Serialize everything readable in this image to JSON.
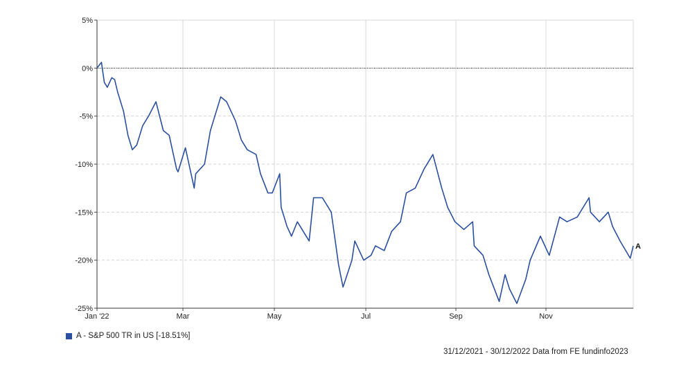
{
  "chart_data": {
    "type": "line",
    "x_ticks": [
      "Jan '22",
      "Mar",
      "May",
      "Jul",
      "Sep",
      "Nov"
    ],
    "y_ticks": [
      "5%",
      "0%",
      "-5%",
      "-10%",
      "-15%",
      "-20%",
      "-25%"
    ],
    "ylim": [
      -25,
      5
    ],
    "grid": true,
    "reference_line": 0,
    "series": [
      {
        "name": "A - S&P 500 TR in US [-18.51%]",
        "end_label": "A",
        "color": "#2a4fa0",
        "x": [
          "2021-12-31",
          "2022-01-03",
          "2022-01-05",
          "2022-01-07",
          "2022-01-10",
          "2022-01-12",
          "2022-01-14",
          "2022-01-18",
          "2022-01-21",
          "2022-01-24",
          "2022-01-27",
          "2022-01-31",
          "2022-02-04",
          "2022-02-09",
          "2022-02-14",
          "2022-02-18",
          "2022-02-23",
          "2022-02-24",
          "2022-03-01",
          "2022-03-07",
          "2022-03-08",
          "2022-03-14",
          "2022-03-18",
          "2022-03-22",
          "2022-03-25",
          "2022-03-29",
          "2022-04-04",
          "2022-04-08",
          "2022-04-12",
          "2022-04-18",
          "2022-04-21",
          "2022-04-26",
          "2022-04-29",
          "2022-05-04",
          "2022-05-05",
          "2022-05-09",
          "2022-05-12",
          "2022-05-16",
          "2022-05-20",
          "2022-05-24",
          "2022-05-27",
          "2022-06-02",
          "2022-06-08",
          "2022-06-13",
          "2022-06-16",
          "2022-06-22",
          "2022-06-24",
          "2022-06-30",
          "2022-07-05",
          "2022-07-08",
          "2022-07-14",
          "2022-07-19",
          "2022-07-25",
          "2022-07-29",
          "2022-08-04",
          "2022-08-10",
          "2022-08-16",
          "2022-08-22",
          "2022-08-26",
          "2022-08-31",
          "2022-09-06",
          "2022-09-12",
          "2022-09-13",
          "2022-09-19",
          "2022-09-23",
          "2022-09-30",
          "2022-10-04",
          "2022-10-07",
          "2022-10-12",
          "2022-10-18",
          "2022-10-21",
          "2022-10-28",
          "2022-11-03",
          "2022-11-10",
          "2022-11-15",
          "2022-11-22",
          "2022-11-30",
          "2022-12-01",
          "2022-12-07",
          "2022-12-13",
          "2022-12-16",
          "2022-12-21",
          "2022-12-28",
          "2022-12-30"
        ],
        "y": [
          0.0,
          0.6,
          -1.5,
          -2.0,
          -1.0,
          -1.2,
          -2.5,
          -4.5,
          -7.0,
          -8.5,
          -8.0,
          -6.0,
          -5.0,
          -3.5,
          -6.5,
          -7.0,
          -10.5,
          -10.8,
          -8.3,
          -12.5,
          -11.0,
          -10.0,
          -6.5,
          -4.5,
          -3.0,
          -3.5,
          -5.5,
          -7.5,
          -8.5,
          -9.0,
          -11.0,
          -13.0,
          -13.0,
          -11.0,
          -14.5,
          -16.5,
          -17.5,
          -16.0,
          -17.0,
          -18.0,
          -13.5,
          -13.5,
          -15.0,
          -20.5,
          -22.8,
          -20.0,
          -18.0,
          -20.0,
          -19.5,
          -18.5,
          -19.0,
          -17.0,
          -16.0,
          -13.0,
          -12.5,
          -10.5,
          -9.0,
          -12.5,
          -14.5,
          -16.0,
          -16.8,
          -16.0,
          -18.5,
          -19.5,
          -21.5,
          -24.3,
          -21.5,
          -23.0,
          -24.5,
          -22.0,
          -20.0,
          -17.5,
          -19.5,
          -15.5,
          -16.0,
          -15.5,
          -13.5,
          -15.0,
          -16.0,
          -15.0,
          -16.5,
          -18.0,
          -19.8,
          -18.51
        ]
      }
    ]
  },
  "legend": {
    "label": "A - S&P 500 TR in US [-18.51%]",
    "color": "#2a4fa0"
  },
  "footer": "31/12/2021 - 30/12/2022 Data from FE fundinfo2023"
}
